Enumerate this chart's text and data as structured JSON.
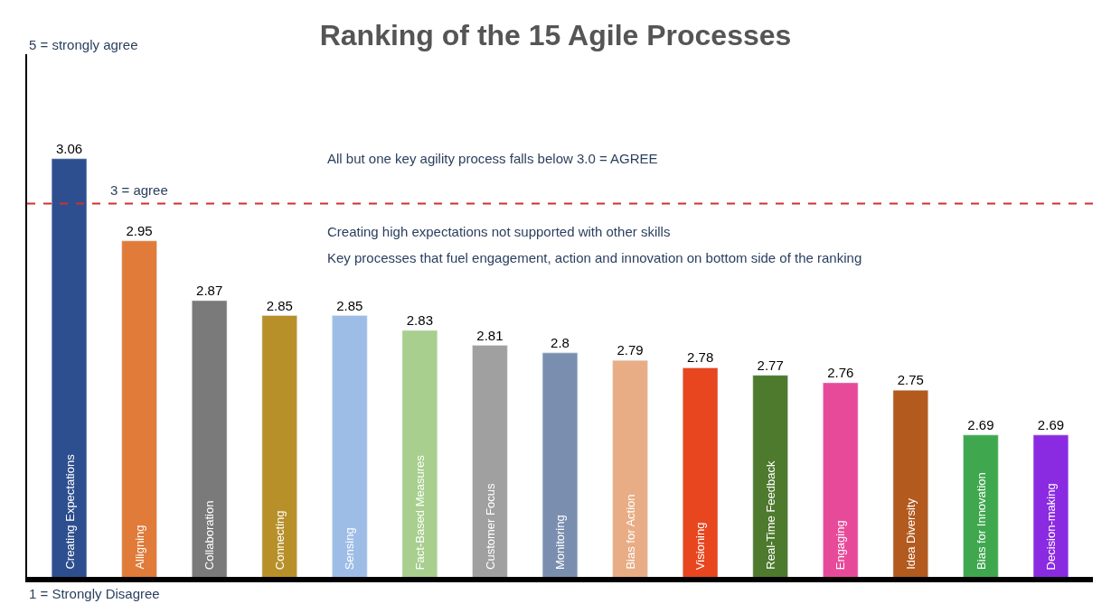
{
  "chart_data": {
    "type": "bar",
    "title": "Ranking of the 15 Agile Processes",
    "categories": [
      "Creating Expectations",
      "Alligning",
      "Collaboration",
      "Connecting",
      "Sensing",
      "Fact-Based Measures",
      "Customer Focus",
      "Monitoring",
      "Bias for Action",
      "Visioning",
      "Real-Time Feedback",
      "Engaging",
      "Idea Diversity",
      "Bias for Innovation",
      "Decision-making"
    ],
    "values": [
      3.06,
      2.95,
      2.87,
      2.85,
      2.85,
      2.83,
      2.81,
      2.8,
      2.79,
      2.78,
      2.77,
      2.76,
      2.75,
      2.69,
      2.69
    ],
    "colors": [
      "#2e4f8f",
      "#e07b39",
      "#7a7a7a",
      "#b8902a",
      "#9dbde6",
      "#a8cf8e",
      "#a0a0a0",
      "#7a8fb0",
      "#e8ad85",
      "#e8461f",
      "#4e7a2e",
      "#e84a9a",
      "#b35a1f",
      "#3fa84f",
      "#8a2be2"
    ],
    "ylim": [
      2.5,
      3.2
    ],
    "data_labels": true,
    "tick_labels": "x",
    "legend": false,
    "ref_lines": [
      {
        "axis": "y",
        "value": 3,
        "label": "3 = agree",
        "color": "#d03030",
        "line_style": "dashed"
      }
    ],
    "annotations": [
      "5 = strongly agree",
      "1 = Strongly Disagree",
      "All but one key agility process falls below 3.0 = AGREE",
      "Creating high expectations not supported with other skills",
      "Key processes that fuel engagement, action and innovation on bottom side of the ranking"
    ]
  }
}
